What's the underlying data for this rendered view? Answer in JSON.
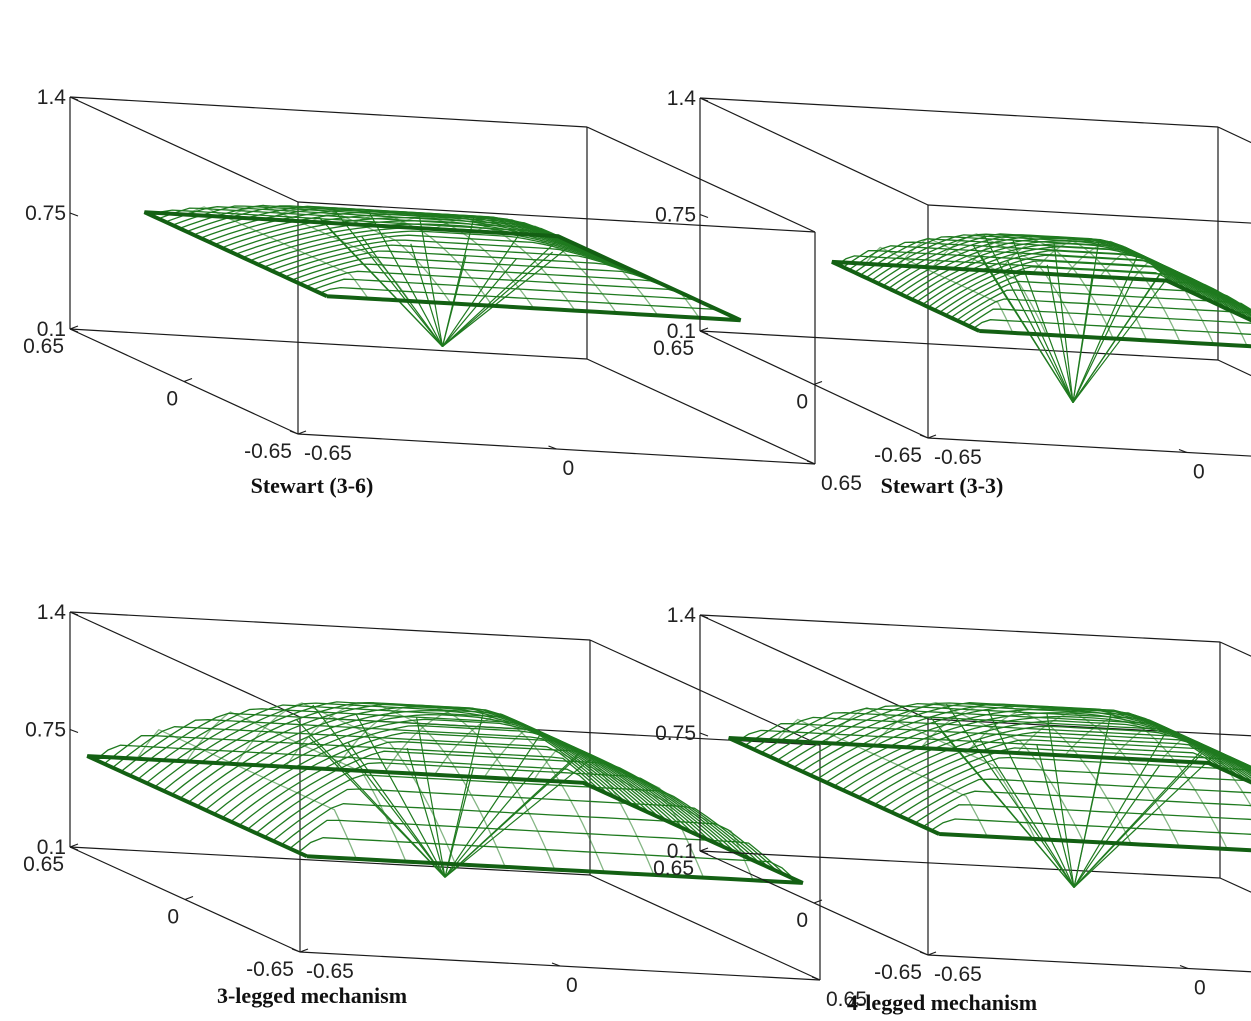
{
  "figure": {
    "line_color": "#1f7a1f",
    "rim_color": "#136013",
    "box_color": "#1a1a1a"
  },
  "chart_data": [
    {
      "type": "surface3d",
      "title": "Stewart (3-6)",
      "z_ticks": [
        "1.4",
        "0.75",
        "0.1"
      ],
      "y_ticks": [
        "0.65",
        "0",
        "-0.65"
      ],
      "x_ticks": [
        "-0.65",
        "0",
        "0.65"
      ],
      "xlim": [
        -0.65,
        0.65
      ],
      "ylim": [
        -0.65,
        0.65
      ],
      "zlim": [
        0.1,
        1.4
      ],
      "surface": {
        "peak_z": 1.08,
        "corner_z": 0.83,
        "center_z": 0.97,
        "apex_z": 0.38,
        "half_width": 0.52
      }
    },
    {
      "type": "surface3d",
      "title": "Stewart (3-3)",
      "z_ticks": [
        "1.4",
        "0.75",
        "0.1"
      ],
      "y_ticks": [
        "0.65",
        "0",
        "-0.65"
      ],
      "x_ticks": [
        "-0.65",
        "0",
        "0.65"
      ],
      "xlim": [
        -0.65,
        0.65
      ],
      "ylim": [
        -0.65,
        0.65
      ],
      "zlim": [
        0.1,
        1.4
      ],
      "surface": {
        "peak_z": 0.98,
        "corner_z": 0.62,
        "center_z": 0.88,
        "apex_z": 0.08,
        "half_width": 0.42
      }
    },
    {
      "type": "surface3d",
      "title": "3-legged mechanism",
      "z_ticks": [
        "1.4",
        "0.75",
        "0.1"
      ],
      "y_ticks": [
        "0.65",
        "0",
        "-0.65"
      ],
      "x_ticks": [
        "-0.65",
        "0",
        "0.65"
      ],
      "xlim": [
        -0.65,
        0.65
      ],
      "ylim": [
        -0.65,
        0.65
      ],
      "zlim": [
        0.1,
        1.4
      ],
      "surface": {
        "peak_z": 1.22,
        "corner_z": 0.62,
        "center_z": 1.05,
        "apex_z": 0.3,
        "half_width": 0.62
      }
    },
    {
      "type": "surface3d",
      "title": "4-legged mechanism",
      "z_ticks": [
        "1.4",
        "0.75",
        "0.1"
      ],
      "y_ticks": [
        "0.65",
        "0",
        "-0.65"
      ],
      "x_ticks": [
        "-0.65",
        "0",
        "0.65"
      ],
      "xlim": [
        -0.65,
        0.65
      ],
      "ylim": [
        -0.65,
        0.65
      ],
      "zlim": [
        0.1,
        1.4
      ],
      "surface": {
        "peak_z": 1.22,
        "corner_z": 0.75,
        "center_z": 1.08,
        "apex_z": 0.26,
        "half_width": 0.6
      }
    }
  ]
}
